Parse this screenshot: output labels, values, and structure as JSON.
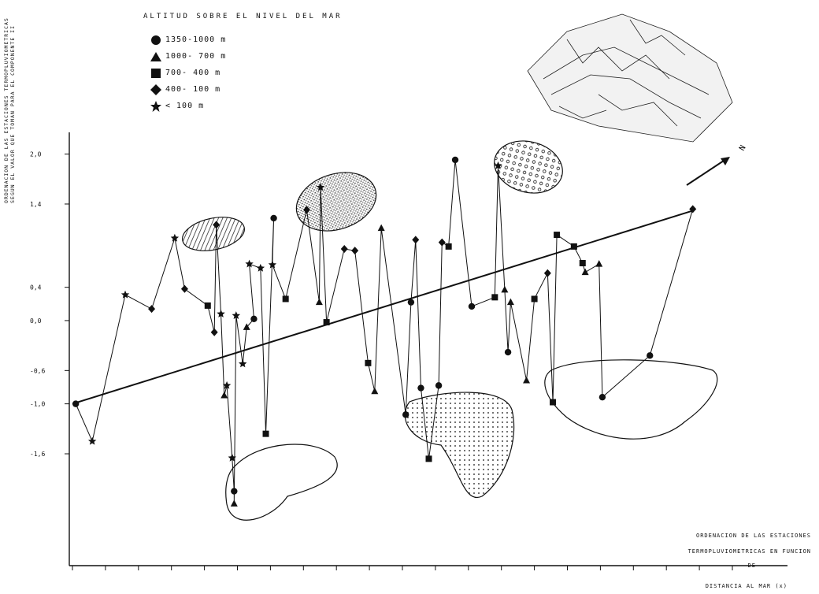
{
  "legend": {
    "title": "ALTITUD SOBRE EL NIVEL DEL MAR",
    "items": [
      {
        "symbol": "circle",
        "label": "1350-1000 m"
      },
      {
        "symbol": "triangle",
        "label": "1000- 700 m"
      },
      {
        "symbol": "square",
        "label": "700- 400 m"
      },
      {
        "symbol": "diamond",
        "label": "400- 100 m"
      },
      {
        "symbol": "star",
        "label": "< 100 m"
      }
    ]
  },
  "ylabel": "ORDENACION DE LAS ESTACIONES TERMOPLUVIOMETRICAS SEGUN EL VALOR QUE TOMAN PARA EL COMPONENTE II",
  "north_label": "N",
  "footer": {
    "line1": "ORDENACION DE LAS ESTACIONES",
    "line2": "TERMOPLUVIOMETRICAS EN FUNCION",
    "line3": "DE",
    "line4": "DISTANCIA AL MAR (x)"
  },
  "colors": {
    "ink": "#111111",
    "paper": "#ffffff"
  },
  "chart_data": {
    "type": "scatter",
    "title": "",
    "xlabel": "DISTANCIA AL MAR (x)",
    "ylabel": "ORDENACION DE LAS ESTACIONES TERMOPLUVIOMETRICAS SEGUN EL VALOR QUE TOMAN PARA EL COMPONENTE II",
    "yticks": [
      2.0,
      1.4,
      0.4,
      0.0,
      -0.6,
      -1.0,
      -1.6
    ],
    "ytick_labels": [
      "2,0",
      "1,4",
      "0,4",
      "0,0",
      "-0,6",
      "-1,0",
      "-1,6"
    ],
    "ylim": [
      -2.3,
      2.1
    ],
    "xlim": [
      0,
      100
    ],
    "regression_line": {
      "x": [
        0,
        94
      ],
      "y": [
        -1.0,
        1.32
      ]
    },
    "points": [
      {
        "x": 0.5,
        "y": -1.0,
        "symbol": "circle"
      },
      {
        "x": 3,
        "y": -1.45,
        "symbol": "star"
      },
      {
        "x": 8,
        "y": 0.31,
        "symbol": "star"
      },
      {
        "x": 12,
        "y": 0.14,
        "symbol": "diamond"
      },
      {
        "x": 15.5,
        "y": 0.99,
        "symbol": "star"
      },
      {
        "x": 17,
        "y": 0.38,
        "symbol": "diamond"
      },
      {
        "x": 20.5,
        "y": 0.18,
        "symbol": "square"
      },
      {
        "x": 21.5,
        "y": -0.14,
        "symbol": "diamond"
      },
      {
        "x": 21.8,
        "y": 1.15,
        "symbol": "diamond"
      },
      {
        "x": 22.5,
        "y": 0.08,
        "symbol": "star"
      },
      {
        "x": 23,
        "y": -0.9,
        "symbol": "triangle"
      },
      {
        "x": 23.4,
        "y": -0.78,
        "symbol": "star"
      },
      {
        "x": 24.2,
        "y": -1.65,
        "symbol": "star"
      },
      {
        "x": 24.5,
        "y": -2.05,
        "symbol": "circle"
      },
      {
        "x": 24.5,
        "y": -2.2,
        "symbol": "triangle"
      },
      {
        "x": 24.8,
        "y": 0.06,
        "symbol": "star"
      },
      {
        "x": 25.8,
        "y": -0.52,
        "symbol": "star"
      },
      {
        "x": 26.4,
        "y": -0.08,
        "symbol": "triangle"
      },
      {
        "x": 27.5,
        "y": 0.02,
        "symbol": "circle"
      },
      {
        "x": 26.8,
        "y": 0.68,
        "symbol": "star"
      },
      {
        "x": 28.5,
        "y": 0.63,
        "symbol": "star"
      },
      {
        "x": 29.3,
        "y": -1.36,
        "symbol": "square"
      },
      {
        "x": 30.5,
        "y": 1.23,
        "symbol": "circle"
      },
      {
        "x": 30.3,
        "y": 0.67,
        "symbol": "star"
      },
      {
        "x": 32.3,
        "y": 0.26,
        "symbol": "square"
      },
      {
        "x": 35.5,
        "y": 1.33,
        "symbol": "diamond"
      },
      {
        "x": 37.4,
        "y": 0.22,
        "symbol": "triangle"
      },
      {
        "x": 37.6,
        "y": 1.6,
        "symbol": "star"
      },
      {
        "x": 38.5,
        "y": -0.02,
        "symbol": "square"
      },
      {
        "x": 41.2,
        "y": 0.86,
        "symbol": "diamond"
      },
      {
        "x": 42.8,
        "y": 0.84,
        "symbol": "diamond"
      },
      {
        "x": 44.8,
        "y": -0.51,
        "symbol": "square"
      },
      {
        "x": 45.8,
        "y": -0.85,
        "symbol": "triangle"
      },
      {
        "x": 46.8,
        "y": 1.11,
        "symbol": "triangle"
      },
      {
        "x": 50.5,
        "y": -1.13,
        "symbol": "circle"
      },
      {
        "x": 51.3,
        "y": 0.22,
        "symbol": "circle"
      },
      {
        "x": 52,
        "y": 0.97,
        "symbol": "diamond"
      },
      {
        "x": 52.8,
        "y": -0.81,
        "symbol": "circle"
      },
      {
        "x": 54,
        "y": -1.66,
        "symbol": "square"
      },
      {
        "x": 55.5,
        "y": -0.78,
        "symbol": "circle"
      },
      {
        "x": 56,
        "y": 0.94,
        "symbol": "diamond"
      },
      {
        "x": 57,
        "y": 0.89,
        "symbol": "square"
      },
      {
        "x": 58,
        "y": 1.93,
        "symbol": "circle"
      },
      {
        "x": 60.5,
        "y": 0.17,
        "symbol": "circle"
      },
      {
        "x": 64,
        "y": 0.28,
        "symbol": "square"
      },
      {
        "x": 64.5,
        "y": 1.86,
        "symbol": "star"
      },
      {
        "x": 65.5,
        "y": 0.37,
        "symbol": "triangle"
      },
      {
        "x": 66,
        "y": -0.38,
        "symbol": "circle"
      },
      {
        "x": 66.4,
        "y": 0.22,
        "symbol": "triangle"
      },
      {
        "x": 68.8,
        "y": -0.72,
        "symbol": "triangle"
      },
      {
        "x": 70,
        "y": 0.26,
        "symbol": "square"
      },
      {
        "x": 72,
        "y": 0.57,
        "symbol": "diamond"
      },
      {
        "x": 72.8,
        "y": -0.98,
        "symbol": "square"
      },
      {
        "x": 73.4,
        "y": 1.03,
        "symbol": "square"
      },
      {
        "x": 76,
        "y": 0.89,
        "symbol": "square"
      },
      {
        "x": 77.3,
        "y": 0.69,
        "symbol": "square"
      },
      {
        "x": 77.7,
        "y": 0.58,
        "symbol": "triangle"
      },
      {
        "x": 79.8,
        "y": 0.68,
        "symbol": "triangle"
      },
      {
        "x": 80.3,
        "y": -0.92,
        "symbol": "circle"
      },
      {
        "x": 87.5,
        "y": -0.42,
        "symbol": "circle"
      },
      {
        "x": 94,
        "y": 1.34,
        "symbol": "diamond"
      }
    ]
  }
}
